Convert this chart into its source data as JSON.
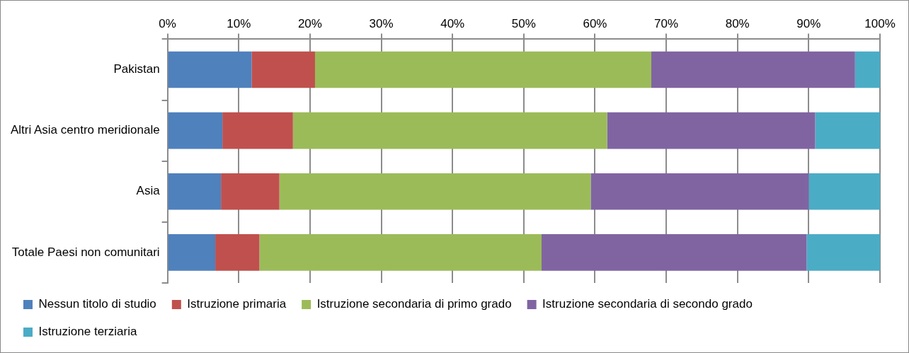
{
  "chart_data": {
    "type": "bar",
    "orientation": "horizontal",
    "stacked": true,
    "categories": [
      "Pakistan",
      "Altri Asia centro meridionale",
      "Asia",
      "Totale Paesi non comunitari"
    ],
    "series": [
      {
        "name": "Nessun titolo di studio",
        "color": "#4f81bd",
        "values": [
          11.8,
          7.7,
          7.5,
          6.7
        ]
      },
      {
        "name": "Istruzione primaria",
        "color": "#c0504d",
        "values": [
          8.9,
          9.9,
          8.2,
          6.2
        ]
      },
      {
        "name": "Istruzione secondaria di primo grado",
        "color": "#9bbb59",
        "values": [
          47.2,
          44.1,
          43.7,
          39.6
        ]
      },
      {
        "name": "Istruzione secondaria di secondo grado",
        "color": "#8064a2",
        "values": [
          28.6,
          29.2,
          30.6,
          37.2
        ]
      },
      {
        "name": "Istruzione terziaria",
        "color": "#4bacc6",
        "values": [
          3.5,
          9.1,
          10.0,
          10.3
        ]
      }
    ],
    "xlim": [
      0,
      100
    ],
    "xticks": [
      {
        "value": 0,
        "label": "0%"
      },
      {
        "value": 10,
        "label": "10%"
      },
      {
        "value": 20,
        "label": "20%"
      },
      {
        "value": 30,
        "label": "30%"
      },
      {
        "value": 40,
        "label": "40%"
      },
      {
        "value": 50,
        "label": "50%"
      },
      {
        "value": 60,
        "label": "60%"
      },
      {
        "value": 70,
        "label": "70%"
      },
      {
        "value": 80,
        "label": "80%"
      },
      {
        "value": 90,
        "label": "90%"
      },
      {
        "value": 100,
        "label": "100%"
      }
    ],
    "grid": "x",
    "legend": "bottom"
  }
}
